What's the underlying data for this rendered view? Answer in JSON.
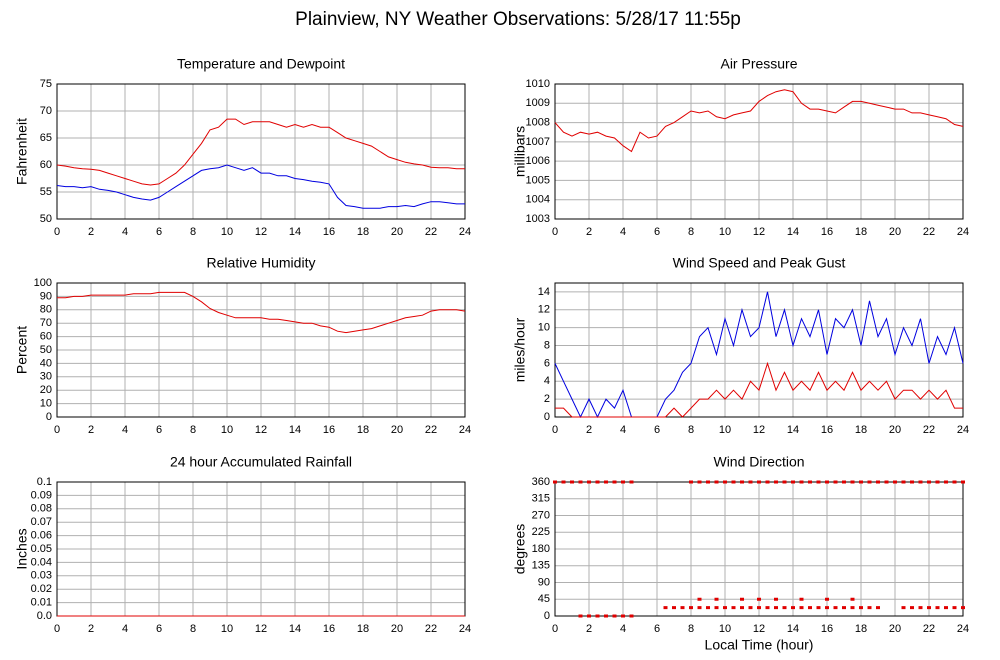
{
  "title": "Plainview, NY Weather Observations: 5/28/17 11:55p",
  "chart_data": [
    {
      "type": "line",
      "title": "Temperature and Dewpoint",
      "ylabel": "Fahrenheit",
      "xlim": [
        0,
        24
      ],
      "xticks": [
        0,
        2,
        4,
        6,
        8,
        10,
        12,
        14,
        16,
        18,
        20,
        22,
        24
      ],
      "ylim": [
        50,
        75
      ],
      "yticks": [
        50,
        55,
        60,
        65,
        70,
        75
      ],
      "grid": true,
      "x": [
        0,
        0.5,
        1,
        1.5,
        2,
        2.5,
        3,
        3.5,
        4,
        4.5,
        5,
        5.5,
        6,
        6.5,
        7,
        7.5,
        8,
        8.5,
        9,
        9.5,
        10,
        10.5,
        11,
        11.5,
        12,
        12.5,
        13,
        13.5,
        14,
        14.5,
        15,
        15.5,
        16,
        16.5,
        17,
        17.5,
        18,
        18.5,
        19,
        19.5,
        20,
        20.5,
        21,
        21.5,
        22,
        22.5,
        23,
        23.5,
        24
      ],
      "series": [
        {
          "color": "#e00000",
          "values": [
            60,
            59.8,
            59.5,
            59.3,
            59.2,
            59,
            58.5,
            58,
            57.5,
            57,
            56.5,
            56.3,
            56.5,
            57.5,
            58.5,
            60,
            62,
            64,
            66.5,
            67,
            68.5,
            68.5,
            67.5,
            68,
            68,
            68,
            67.5,
            67,
            67.5,
            67,
            67.5,
            67,
            67,
            66,
            65,
            64.5,
            64,
            63.5,
            62.5,
            61.5,
            61,
            60.5,
            60.2,
            60,
            59.6,
            59.5,
            59.5,
            59.3,
            59.3
          ]
        },
        {
          "color": "#0000e0",
          "values": [
            56.2,
            56,
            56,
            55.8,
            56,
            55.5,
            55.3,
            55,
            54.5,
            54,
            53.7,
            53.5,
            54,
            55,
            56,
            57,
            58,
            59,
            59.3,
            59.5,
            60,
            59.5,
            59,
            59.5,
            58.5,
            58.5,
            58,
            58,
            57.5,
            57.3,
            57,
            56.8,
            56.5,
            54,
            52.5,
            52.3,
            52,
            52,
            52,
            52.3,
            52.3,
            52.5,
            52.3,
            52.8,
            53.2,
            53.2,
            53,
            52.8,
            52.8
          ]
        }
      ]
    },
    {
      "type": "line",
      "title": "Air Pressure",
      "ylabel": "millibars",
      "xlim": [
        0,
        24
      ],
      "xticks": [
        0,
        2,
        4,
        6,
        8,
        10,
        12,
        14,
        16,
        18,
        20,
        22,
        24
      ],
      "ylim": [
        1003,
        1010
      ],
      "yticks": [
        1003,
        1004,
        1005,
        1006,
        1007,
        1008,
        1009,
        1010
      ],
      "grid": true,
      "x": [
        0,
        0.5,
        1,
        1.5,
        2,
        2.5,
        3,
        3.5,
        4,
        4.5,
        5,
        5.5,
        6,
        6.5,
        7,
        7.5,
        8,
        8.5,
        9,
        9.5,
        10,
        10.5,
        11,
        11.5,
        12,
        12.5,
        13,
        13.5,
        14,
        14.5,
        15,
        15.5,
        16,
        16.5,
        17,
        17.5,
        18,
        18.5,
        19,
        19.5,
        20,
        20.5,
        21,
        21.5,
        22,
        22.5,
        23,
        23.5,
        24
      ],
      "series": [
        {
          "color": "#e00000",
          "values": [
            1008,
            1007.5,
            1007.3,
            1007.5,
            1007.4,
            1007.5,
            1007.3,
            1007.2,
            1006.8,
            1006.5,
            1007.5,
            1007.2,
            1007.3,
            1007.8,
            1008,
            1008.3,
            1008.6,
            1008.5,
            1008.6,
            1008.3,
            1008.2,
            1008.4,
            1008.5,
            1008.6,
            1009.1,
            1009.4,
            1009.6,
            1009.7,
            1009.6,
            1009,
            1008.7,
            1008.7,
            1008.6,
            1008.5,
            1008.8,
            1009.1,
            1009.1,
            1009,
            1008.9,
            1008.8,
            1008.7,
            1008.7,
            1008.5,
            1008.5,
            1008.4,
            1008.3,
            1008.2,
            1007.9,
            1007.8
          ]
        }
      ]
    },
    {
      "type": "line",
      "title": "Relative Humidity",
      "ylabel": "Percent",
      "xlim": [
        0,
        24
      ],
      "xticks": [
        0,
        2,
        4,
        6,
        8,
        10,
        12,
        14,
        16,
        18,
        20,
        22,
        24
      ],
      "ylim": [
        0,
        100
      ],
      "yticks": [
        0,
        10,
        20,
        30,
        40,
        50,
        60,
        70,
        80,
        90,
        100
      ],
      "grid": true,
      "x": [
        0,
        0.5,
        1,
        1.5,
        2,
        2.5,
        3,
        3.5,
        4,
        4.5,
        5,
        5.5,
        6,
        6.5,
        7,
        7.5,
        8,
        8.5,
        9,
        9.5,
        10,
        10.5,
        11,
        11.5,
        12,
        12.5,
        13,
        13.5,
        14,
        14.5,
        15,
        15.5,
        16,
        16.5,
        17,
        17.5,
        18,
        18.5,
        19,
        19.5,
        20,
        20.5,
        21,
        21.5,
        22,
        22.5,
        23,
        23.5,
        24
      ],
      "series": [
        {
          "color": "#e00000",
          "values": [
            89,
            89,
            90,
            90,
            91,
            91,
            91,
            91,
            91,
            92,
            92,
            92,
            93,
            93,
            93,
            93,
            90,
            86,
            81,
            78,
            76,
            74,
            74,
            74,
            74,
            73,
            73,
            72,
            71,
            70,
            70,
            68,
            67,
            64,
            63,
            64,
            65,
            66,
            68,
            70,
            72,
            74,
            75,
            76,
            79,
            80,
            80,
            80,
            79
          ]
        }
      ]
    },
    {
      "type": "line",
      "title": "Wind Speed and Peak Gust",
      "ylabel": "miles/hour",
      "xlim": [
        0,
        24
      ],
      "xticks": [
        0,
        2,
        4,
        6,
        8,
        10,
        12,
        14,
        16,
        18,
        20,
        22,
        24
      ],
      "ylim": [
        0,
        15
      ],
      "yticks": [
        0,
        2,
        4,
        6,
        8,
        10,
        12,
        14
      ],
      "grid": true,
      "x": [
        0,
        0.5,
        1,
        1.5,
        2,
        2.5,
        3,
        3.5,
        4,
        4.5,
        5,
        5.5,
        6,
        6.5,
        7,
        7.5,
        8,
        8.5,
        9,
        9.5,
        10,
        10.5,
        11,
        11.5,
        12,
        12.5,
        13,
        13.5,
        14,
        14.5,
        15,
        15.5,
        16,
        16.5,
        17,
        17.5,
        18,
        18.5,
        19,
        19.5,
        20,
        20.5,
        21,
        21.5,
        22,
        22.5,
        23,
        23.5,
        24
      ],
      "series": [
        {
          "color": "#0000e0",
          "values": [
            6,
            4,
            2,
            0,
            2,
            0,
            2,
            1,
            3,
            0,
            0,
            0,
            0,
            2,
            3,
            5,
            6,
            9,
            10,
            7,
            11,
            8,
            12,
            9,
            10,
            14,
            9,
            12,
            8,
            11,
            9,
            12,
            7,
            11,
            10,
            12,
            8,
            13,
            9,
            11,
            7,
            10,
            8,
            11,
            6,
            9,
            7,
            10,
            6
          ]
        },
        {
          "color": "#e00000",
          "values": [
            1,
            1,
            0,
            0,
            0,
            0,
            0,
            0,
            0,
            0,
            0,
            0,
            0,
            0,
            1,
            0,
            1,
            2,
            2,
            3,
            2,
            3,
            2,
            4,
            3,
            6,
            3,
            5,
            3,
            4,
            3,
            5,
            3,
            4,
            3,
            5,
            3,
            4,
            3,
            4,
            2,
            3,
            3,
            2,
            3,
            2,
            3,
            1,
            1
          ]
        }
      ]
    },
    {
      "type": "line",
      "title": "24 hour Accumulated Rainfall",
      "ylabel": "Inches",
      "xlim": [
        0,
        24
      ],
      "xticks": [
        0,
        2,
        4,
        6,
        8,
        10,
        12,
        14,
        16,
        18,
        20,
        22,
        24
      ],
      "ylim": [
        0,
        0.1
      ],
      "yticks": [
        {
          "value": 0,
          "label": "0.0"
        },
        0.01,
        0.02,
        0.03,
        0.04,
        0.05,
        0.06,
        0.07,
        0.08,
        0.09,
        0.1
      ],
      "grid": true,
      "x": [
        0,
        24
      ],
      "series": [
        {
          "color": "#0000e0",
          "values": [
            0,
            0
          ]
        },
        {
          "color": "#e00000",
          "values": [
            0,
            0
          ]
        }
      ]
    },
    {
      "type": "scatter",
      "title": "Wind Direction",
      "ylabel": "degrees",
      "xlabel": "Local Time (hour)",
      "xlim": [
        0,
        24
      ],
      "xticks": [
        0,
        2,
        4,
        6,
        8,
        10,
        12,
        14,
        16,
        18,
        20,
        22,
        24
      ],
      "ylim": [
        0,
        360
      ],
      "yticks": [
        0,
        45,
        90,
        135,
        180,
        225,
        270,
        315,
        360
      ],
      "grid": true,
      "series": [
        {
          "color": "#e00000",
          "x": [
            0,
            0.5,
            1,
            1.5,
            2,
            2.5,
            3,
            3.5,
            4,
            4.5,
            8,
            8.5,
            9,
            9.5,
            10,
            10.5,
            11,
            11.5,
            12,
            12.5,
            13,
            13.5,
            14,
            14.5,
            15,
            15.5,
            16,
            16.5,
            17,
            17.5,
            18,
            18.5,
            19,
            19.5,
            20,
            20.5,
            21,
            21.5,
            22,
            22.5,
            23,
            23.5,
            24
          ],
          "values": [
            360,
            360,
            360,
            360,
            360,
            360,
            360,
            360,
            360,
            360,
            360,
            360,
            360,
            360,
            360,
            360,
            360,
            360,
            360,
            360,
            360,
            360,
            360,
            360,
            360,
            360,
            360,
            360,
            360,
            360,
            360,
            360,
            360,
            360,
            360,
            360,
            360,
            360,
            360,
            360,
            360,
            360,
            360
          ]
        },
        {
          "color": "#e00000",
          "x": [
            1.5,
            2,
            2.5,
            3,
            3.5,
            4,
            4.5
          ],
          "values": [
            0,
            0,
            0,
            0,
            0,
            0,
            0
          ]
        },
        {
          "color": "#e00000",
          "x": [
            6.5,
            7,
            7.5,
            8,
            8.5,
            9,
            9.5,
            10,
            10.5,
            11,
            11.5,
            12,
            12.5,
            13,
            13.5,
            14,
            14.5,
            15,
            15.5,
            16,
            16.5,
            17,
            17.5,
            18,
            18.5,
            19,
            20.5,
            21,
            21.5,
            22,
            22.5,
            23,
            23.5,
            24
          ],
          "values": [
            22.5,
            22.5,
            22.5,
            22.5,
            22.5,
            22.5,
            22.5,
            22.5,
            22.5,
            22.5,
            22.5,
            22.5,
            22.5,
            22.5,
            22.5,
            22.5,
            22.5,
            22.5,
            22.5,
            22.5,
            22.5,
            22.5,
            22.5,
            22.5,
            22.5,
            22.5,
            22.5,
            22.5,
            22.5,
            22.5,
            22.5,
            22.5,
            22.5,
            22.5
          ]
        },
        {
          "color": "#e00000",
          "x": [
            8.5,
            9.5,
            11,
            12,
            13,
            14.5,
            16,
            17.5
          ],
          "values": [
            45,
            45,
            45,
            45,
            45,
            45,
            45,
            45
          ]
        }
      ]
    }
  ]
}
